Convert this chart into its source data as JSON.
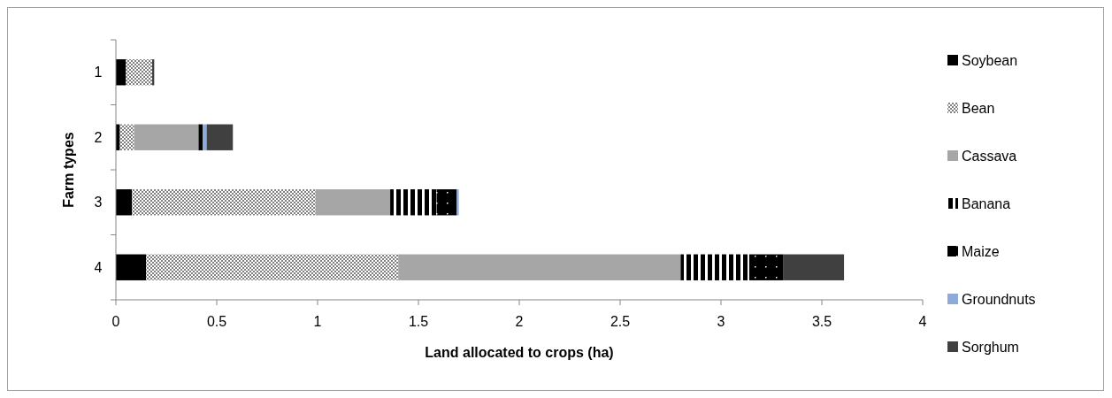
{
  "chart_data": {
    "type": "bar",
    "orientation": "horizontal",
    "stacked": true,
    "xlabel": "Land allocated to crops (ha)",
    "ylabel": "Farm types",
    "categories": [
      "1",
      "2",
      "3",
      "4"
    ],
    "series": [
      {
        "name": "Soybean",
        "color": "#000000",
        "values": [
          0.05,
          0.02,
          0.08,
          0.15
        ]
      },
      {
        "name": "Bean",
        "color": "#808080",
        "values": [
          0.13,
          0.07,
          0.91,
          1.25
        ]
      },
      {
        "name": "Cassava",
        "color": "#a6a6a6",
        "values": [
          0,
          0.32,
          0.37,
          1.4
        ]
      },
      {
        "name": "Banana",
        "color": "#000000",
        "values": [
          0,
          0,
          0.23,
          0.34
        ]
      },
      {
        "name": "Maize",
        "color": "#000000",
        "values": [
          0,
          0.02,
          0.1,
          0.17
        ]
      },
      {
        "name": "Groundnuts",
        "color": "#8eaadb",
        "values": [
          0,
          0.02,
          0.01,
          0
        ]
      },
      {
        "name": "Sorghum",
        "color": "#404040",
        "values": [
          0.01,
          0.13,
          0,
          0.3
        ]
      }
    ],
    "xlim": [
      0,
      4
    ],
    "xticks": [
      0,
      0.5,
      1,
      1.5,
      2,
      2.5,
      3,
      3.5,
      4
    ],
    "legend": "right",
    "grid": false
  }
}
